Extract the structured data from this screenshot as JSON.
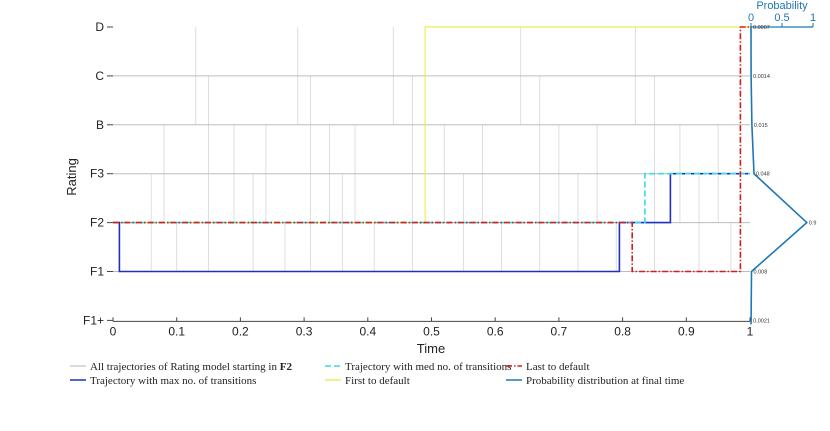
{
  "chart_data": {
    "type": "line",
    "xlabel": "Time",
    "ylabel": "Rating",
    "xlim": [
      0,
      1
    ],
    "x_ticks": [
      "0",
      "0.1",
      "0.2",
      "0.3",
      "0.4",
      "0.5",
      "0.6",
      "0.7",
      "0.8",
      "0.9",
      "1"
    ],
    "categories": [
      "F1+",
      "F1",
      "F2",
      "F3",
      "B",
      "C",
      "D"
    ],
    "background_trajectory_switch_times": [
      0.06,
      0.08,
      0.1,
      0.13,
      0.15,
      0.19,
      0.22,
      0.24,
      0.27,
      0.29,
      0.31,
      0.34,
      0.36,
      0.38,
      0.41,
      0.44,
      0.47,
      0.52,
      0.55,
      0.58,
      0.61,
      0.64,
      0.67,
      0.7,
      0.73,
      0.76,
      0.79,
      0.82,
      0.85,
      0.89,
      0.92,
      0.95,
      0.97
    ],
    "series": [
      {
        "name": "Trajectory with max no. of transitions",
        "color": "#1f2fbf",
        "style": "solid",
        "points": [
          [
            0,
            "F2"
          ],
          [
            0.01,
            "F2"
          ],
          [
            0.01,
            "F1"
          ],
          [
            0.795,
            "F1"
          ],
          [
            0.795,
            "F2"
          ],
          [
            0.875,
            "F2"
          ],
          [
            0.875,
            "F3"
          ],
          [
            1,
            "F3"
          ]
        ]
      },
      {
        "name": "Trajectory with med no. of transitions",
        "color": "#33dddd",
        "style": "dashed",
        "points": [
          [
            0,
            "F2"
          ],
          [
            0.835,
            "F2"
          ],
          [
            0.835,
            "F3"
          ],
          [
            1,
            "F3"
          ]
        ]
      },
      {
        "name": "Last to default",
        "color": "#cc1f1f",
        "style": "dashdot",
        "points": [
          [
            0,
            "F2"
          ],
          [
            0.815,
            "F2"
          ],
          [
            0.815,
            "F1"
          ],
          [
            0.985,
            "F1"
          ],
          [
            0.985,
            "D"
          ],
          [
            1,
            "D"
          ]
        ]
      },
      {
        "name": "First to default",
        "color": "#eeee55",
        "style": "solid",
        "points": [
          [
            0,
            "F2"
          ],
          [
            0.49,
            "F2"
          ],
          [
            0.49,
            "D"
          ],
          [
            1,
            "D"
          ]
        ]
      }
    ],
    "probability_axis": {
      "label": "Probability",
      "ticks": [
        "0",
        "0.5",
        "1"
      ],
      "distribution": [
        {
          "rating": "F1+",
          "value": 0.0021,
          "label": "0.0021"
        },
        {
          "rating": "F1",
          "value": 0.008,
          "label": "0.008"
        },
        {
          "rating": "F2",
          "value": 0.9,
          "label": "0.9"
        },
        {
          "rating": "F3",
          "value": 0.048,
          "label": "0.048"
        },
        {
          "rating": "B",
          "value": 0.015,
          "label": "0.015"
        },
        {
          "rating": "C",
          "value": 0.0014,
          "label": "0.0014"
        },
        {
          "rating": "D",
          "value": 0.0007,
          "label": "0.0007"
        }
      ]
    },
    "legend": [
      {
        "text": "All trajectories of Rating model starting in",
        "bold_suffix": "F2",
        "color": "#cccccc",
        "style": "solid"
      },
      {
        "text": "Trajectory with med no. of transitions",
        "color": "#33dddd",
        "style": "dashed"
      },
      {
        "text": "Last to default",
        "color": "#cc1f1f",
        "style": "dashdot"
      },
      {
        "text": "Trajectory with max no. of transitions",
        "color": "#1f2fbf",
        "style": "solid"
      },
      {
        "text": "First to default",
        "color": "#eeee55",
        "style": "solid"
      },
      {
        "text": "Probability distribution at final time",
        "color": "#1f77b4",
        "style": "solid"
      }
    ]
  }
}
